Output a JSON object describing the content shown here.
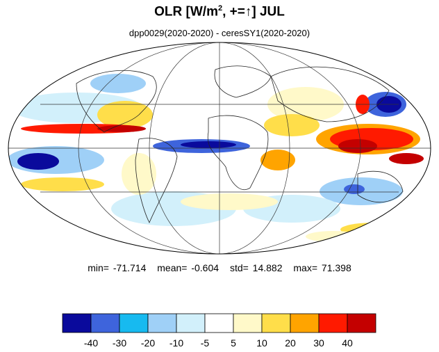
{
  "title": {
    "prefix": "OLR [W/m",
    "superscript": "2",
    "suffix": ", +=↑] JUL"
  },
  "subtitle": "dpp0029(2020-2020) - ceresSY1(2020-2020)",
  "stats": {
    "min": "min= -71.714",
    "mean": "mean= -0.604",
    "std": "std= 14.882",
    "max": "max= 71.398"
  },
  "colorbar": {
    "colors": [
      "#0a0a9c",
      "#3e64dc",
      "#17baf0",
      "#9fd0f7",
      "#d2f0fb",
      "#ffffff",
      "#fff9c9",
      "#ffde4a",
      "#ffa400",
      "#ff1a00",
      "#c40000"
    ],
    "tick_labels": [
      "-40",
      "-30",
      "-20",
      "-10",
      "-5",
      "5",
      "10",
      "20",
      "30",
      "40"
    ]
  },
  "map": {
    "projection": "mollweide",
    "field": "OLR difference"
  }
}
